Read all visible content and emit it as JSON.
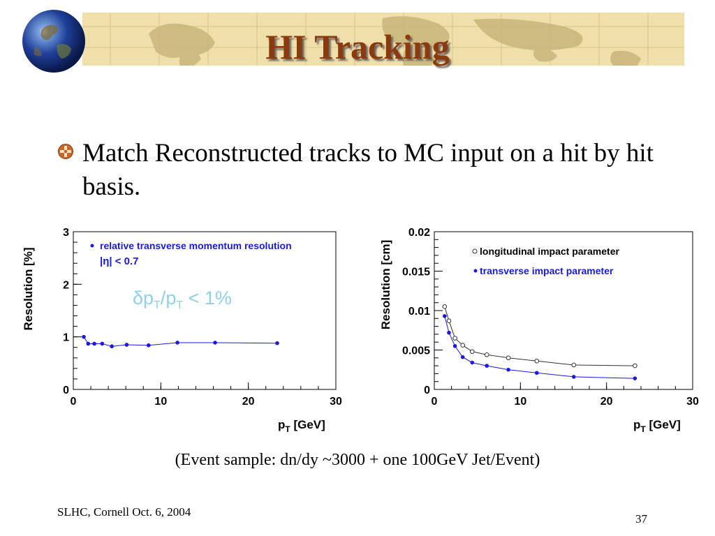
{
  "title": "HI Tracking",
  "bullet": "Match Reconstructed tracks to MC input on a hit by hit basis.",
  "caption": "(Event sample: dn/dy ~3000 + one 100GeV Jet/Event)",
  "footer_left": "SLHC, Cornell Oct. 6, 2004",
  "footer_right": "37",
  "colors": {
    "title": "#8b3a0e",
    "banner": "#efdfaa",
    "bullet_icon": "#c8682a",
    "series_blue": "#1a1adc",
    "annotation": "#8fd0ea"
  },
  "chart_data": [
    {
      "type": "line",
      "ylabel": "Resolution [%]",
      "xlabel_main": "p",
      "xlabel_sub": "T",
      "xlabel_unit": " [GeV]",
      "xlim": [
        0,
        30
      ],
      "ylim": [
        0,
        3
      ],
      "xticks": [
        "0",
        "10",
        "20",
        "30"
      ],
      "yticks": [
        "0",
        "1",
        "2",
        "3"
      ],
      "legend": [
        "relative transverse momentum resolution",
        "|η| < 0.7"
      ],
      "annotation": "δp",
      "annotation_sub1": "T",
      "annotation_mid": "/p",
      "annotation_sub2": "T",
      "annotation_end": " < 1%",
      "series": [
        {
          "name": "relative transverse momentum resolution",
          "marker": "filled",
          "x": [
            1.2,
            1.7,
            2.4,
            3.3,
            4.4,
            6.1,
            8.6,
            11.9,
            16.2,
            23.3
          ],
          "y": [
            1.0,
            0.87,
            0.87,
            0.87,
            0.82,
            0.85,
            0.84,
            0.89,
            0.89,
            0.88
          ]
        }
      ]
    },
    {
      "type": "line",
      "ylabel": "Resolution [cm]",
      "xlabel_main": "p",
      "xlabel_sub": "T",
      "xlabel_unit": " [GeV]",
      "xlim": [
        0,
        30
      ],
      "ylim": [
        0,
        0.02
      ],
      "xticks": [
        "0",
        "10",
        "20",
        "30"
      ],
      "yticks": [
        "0",
        "0.005",
        "0.01",
        "0.015",
        "0.02"
      ],
      "legend": [
        "longitudinal impact parameter",
        "transverse impact parameter"
      ],
      "series": [
        {
          "name": "longitudinal impact parameter",
          "marker": "open",
          "x": [
            1.2,
            1.7,
            2.4,
            3.3,
            4.4,
            6.1,
            8.6,
            11.9,
            16.2,
            23.3
          ],
          "y": [
            0.0105,
            0.0087,
            0.0065,
            0.0056,
            0.0048,
            0.0044,
            0.004,
            0.0036,
            0.0031,
            0.003
          ]
        },
        {
          "name": "transverse impact parameter",
          "marker": "filled",
          "x": [
            1.2,
            1.7,
            2.4,
            3.3,
            4.4,
            6.1,
            8.6,
            11.9,
            16.2,
            23.3
          ],
          "y": [
            0.0093,
            0.0072,
            0.0055,
            0.0041,
            0.0034,
            0.003,
            0.0025,
            0.0021,
            0.0016,
            0.0014
          ]
        }
      ]
    }
  ]
}
